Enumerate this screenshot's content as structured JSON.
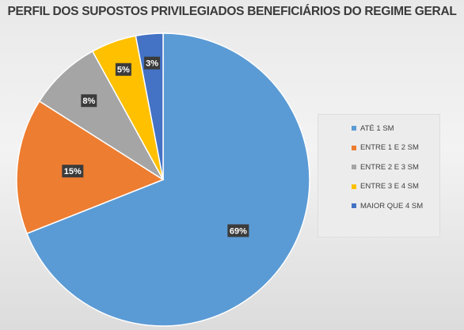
{
  "chart_data": {
    "type": "pie",
    "title": "PERFIL DOS SUPOSTOS PRIVILEGIADOS BENEFICIÁRIOS DO REGIME GERAL",
    "categories": [
      "ATÉ 1 SM",
      "ENTRE 1 E 2 SM",
      "ENTRE 2 E 3 SM",
      "ENTRE 3 E 4 SM",
      "MAIOR QUE 4 SM"
    ],
    "values": [
      69,
      15,
      8,
      5,
      3
    ],
    "data_labels": [
      "69%",
      "15%",
      "8%",
      "5%",
      "3%"
    ],
    "colors": [
      "#5b9bd5",
      "#ed7d31",
      "#a5a5a5",
      "#ffc000",
      "#4472c4"
    ],
    "legend_position": "right"
  }
}
